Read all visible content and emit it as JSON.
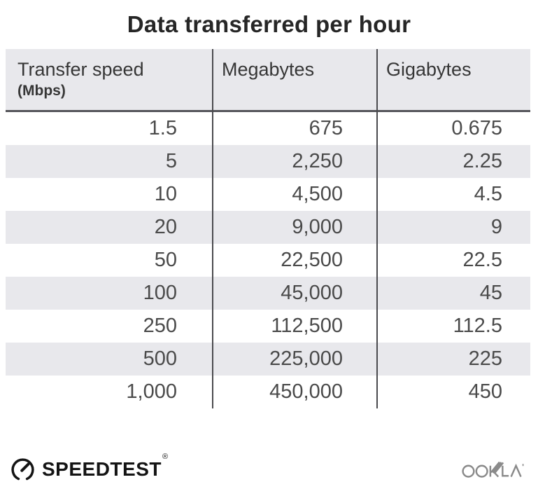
{
  "title": "Data transferred per hour",
  "table": {
    "headers": [
      {
        "label": "Transfer speed",
        "sublabel": "(Mbps)"
      },
      {
        "label": "Megabytes",
        "sublabel": ""
      },
      {
        "label": "Gigabytes",
        "sublabel": ""
      }
    ],
    "rows": [
      [
        "1.5",
        "675",
        "0.675"
      ],
      [
        "5",
        "2,250",
        "2.25"
      ],
      [
        "10",
        "4,500",
        "4.5"
      ],
      [
        "20",
        "9,000",
        "9"
      ],
      [
        "50",
        "22,500",
        "22.5"
      ],
      [
        "100",
        "45,000",
        "45"
      ],
      [
        "250",
        "112,500",
        "112.5"
      ],
      [
        "500",
        "225,000",
        "225"
      ],
      [
        "1,000",
        "450,000",
        "450"
      ]
    ]
  },
  "chart_data": {
    "type": "table",
    "title": "Data transferred per hour",
    "columns": [
      "Transfer speed (Mbps)",
      "Megabytes",
      "Gigabytes"
    ],
    "rows": [
      [
        1.5,
        675,
        0.675
      ],
      [
        5,
        2250,
        2.25
      ],
      [
        10,
        4500,
        4.5
      ],
      [
        20,
        9000,
        9
      ],
      [
        50,
        22500,
        22.5
      ],
      [
        100,
        45000,
        45
      ],
      [
        250,
        112500,
        112.5
      ],
      [
        500,
        225000,
        225
      ],
      [
        1000,
        450000,
        450
      ]
    ],
    "layout_hints": {
      "striped_rows": true,
      "column_dividers": true,
      "value_alignment": "right"
    }
  },
  "footer": {
    "brand": "SPEEDTEST",
    "brand_mark": "®",
    "brand_icon": "speedometer-gauge-icon",
    "attribution": "OOKLA",
    "attribution_icon": "ookla-wordmark"
  },
  "colors": {
    "stripe": "#e8e8ec",
    "header_bg": "#e8e8ec",
    "divider": "#4a4a4e",
    "header_rule": "#55555a",
    "title_text": "#262626",
    "cell_text": "#4a4a4a",
    "ookla_gray": "#8a8a8a"
  }
}
